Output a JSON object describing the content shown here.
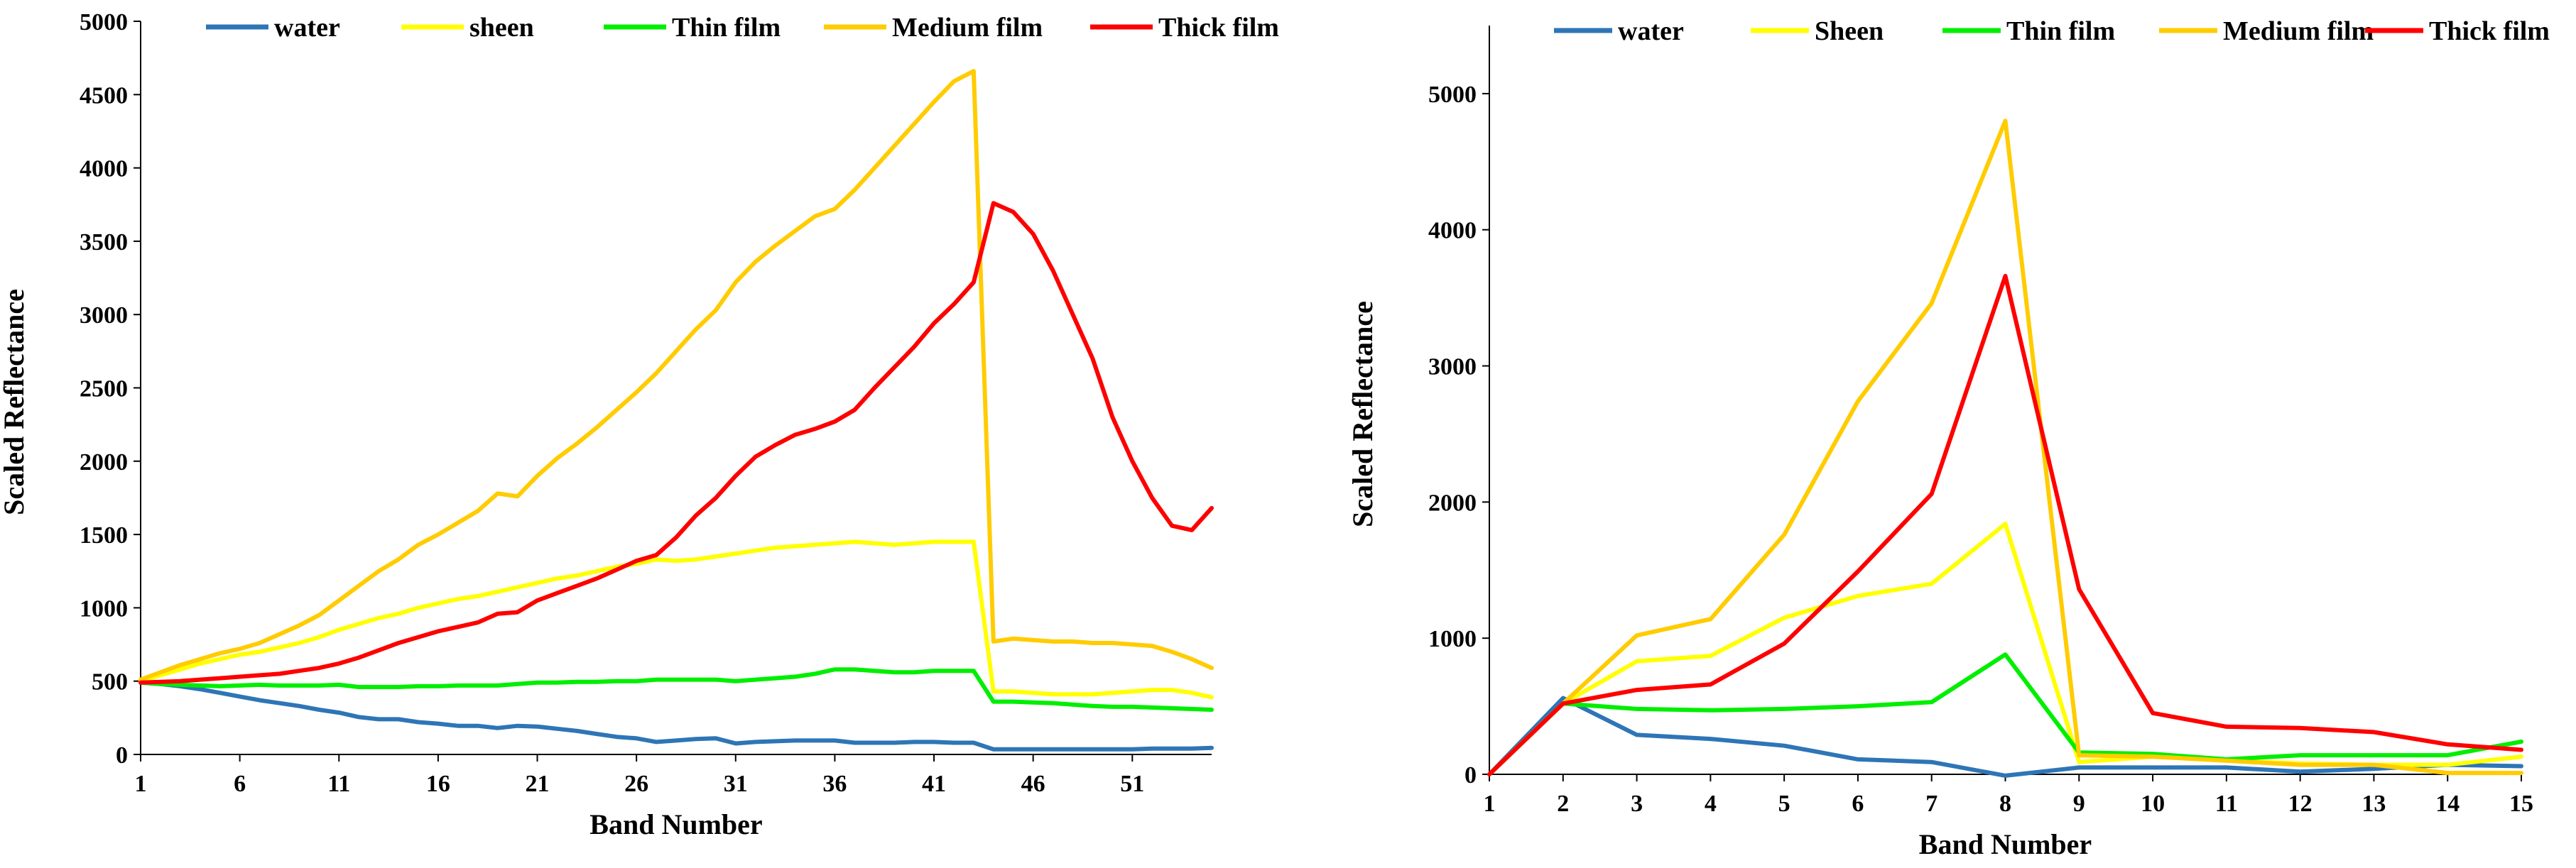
{
  "chart_data": [
    {
      "type": "line",
      "title": "",
      "xlabel": "Band Number",
      "ylabel": "Scaled Reflectance",
      "x_tick_labels": [
        "1",
        "6",
        "11",
        "16",
        "21",
        "26",
        "31",
        "36",
        "41",
        "46",
        "51"
      ],
      "x_range": [
        1,
        55
      ],
      "ylim": [
        0,
        5000
      ],
      "y_tick_labels": [
        "0",
        "500",
        "1000",
        "1500",
        "2000",
        "2500",
        "3000",
        "3500",
        "4000",
        "4500",
        "5000"
      ],
      "legend_position": "top",
      "x": [
        1,
        2,
        3,
        4,
        5,
        6,
        7,
        8,
        9,
        10,
        11,
        12,
        13,
        14,
        15,
        16,
        17,
        18,
        19,
        20,
        21,
        22,
        23,
        24,
        25,
        26,
        27,
        28,
        29,
        30,
        31,
        32,
        33,
        34,
        35,
        36,
        37,
        38,
        39,
        40,
        41,
        42,
        43,
        44,
        45,
        46,
        47,
        48,
        49,
        50,
        51,
        52,
        53,
        54,
        55
      ],
      "series": [
        {
          "name": "water",
          "color": "#2e75b6",
          "values": [
            490,
            480,
            465,
            445,
            420,
            395,
            370,
            350,
            330,
            305,
            285,
            255,
            240,
            240,
            220,
            210,
            195,
            195,
            180,
            195,
            190,
            175,
            160,
            140,
            120,
            110,
            85,
            95,
            105,
            110,
            75,
            85,
            90,
            95,
            95,
            95,
            80,
            80,
            80,
            85,
            85,
            80,
            80,
            35,
            35,
            35,
            35,
            35,
            35,
            35,
            35,
            40,
            40,
            40,
            45
          ]
        },
        {
          "name": "sheen",
          "color": "#ffff00",
          "values": [
            500,
            540,
            580,
            620,
            650,
            680,
            700,
            730,
            760,
            800,
            850,
            890,
            930,
            960,
            1000,
            1030,
            1060,
            1080,
            1110,
            1140,
            1170,
            1200,
            1220,
            1250,
            1280,
            1300,
            1330,
            1320,
            1330,
            1350,
            1370,
            1390,
            1410,
            1420,
            1430,
            1440,
            1450,
            1440,
            1430,
            1440,
            1450,
            1450,
            1450,
            430,
            430,
            420,
            410,
            410,
            410,
            420,
            430,
            440,
            440,
            420,
            390
          ]
        },
        {
          "name": "Thin film",
          "color": "#00ee00",
          "values": [
            490,
            480,
            475,
            470,
            465,
            470,
            475,
            470,
            470,
            470,
            475,
            460,
            460,
            460,
            465,
            465,
            470,
            470,
            470,
            480,
            490,
            490,
            495,
            495,
            500,
            500,
            510,
            510,
            510,
            510,
            500,
            510,
            520,
            530,
            550,
            580,
            580,
            570,
            560,
            560,
            570,
            570,
            570,
            360,
            360,
            355,
            350,
            340,
            330,
            325,
            325,
            320,
            315,
            310,
            305
          ]
        },
        {
          "name": "Medium film",
          "color": "#ffcc00",
          "values": [
            510,
            560,
            610,
            650,
            690,
            720,
            760,
            820,
            880,
            950,
            1050,
            1150,
            1250,
            1330,
            1430,
            1500,
            1580,
            1660,
            1780,
            1760,
            1900,
            2020,
            2120,
            2230,
            2350,
            2470,
            2600,
            2750,
            2900,
            3030,
            3220,
            3360,
            3470,
            3570,
            3670,
            3720,
            3850,
            4000,
            4150,
            4300,
            4450,
            4590,
            4660,
            770,
            790,
            780,
            770,
            770,
            760,
            760,
            750,
            740,
            700,
            650,
            590
          ]
        },
        {
          "name": "Thick film",
          "color": "#ff0000",
          "values": [
            490,
            495,
            500,
            510,
            520,
            530,
            540,
            550,
            570,
            590,
            620,
            660,
            710,
            760,
            800,
            840,
            870,
            900,
            960,
            970,
            1050,
            1100,
            1150,
            1200,
            1260,
            1320,
            1360,
            1480,
            1630,
            1750,
            1900,
            2030,
            2110,
            2180,
            2220,
            2270,
            2350,
            2500,
            2640,
            2780,
            2940,
            3070,
            3220,
            3760,
            3700,
            3550,
            3300,
            3000,
            2700,
            2300,
            2000,
            1750,
            1560,
            1530,
            1680
          ]
        }
      ]
    },
    {
      "type": "line",
      "title": "",
      "xlabel": "Band Number",
      "ylabel": "Scaled Reflectance",
      "x": [
        1,
        2,
        3,
        4,
        5,
        6,
        7,
        8,
        9,
        10,
        11,
        12,
        13,
        14,
        15
      ],
      "x_tick_labels": [
        "1",
        "2",
        "3",
        "4",
        "5",
        "6",
        "7",
        "8",
        "9",
        "10",
        "11",
        "12",
        "13",
        "14",
        "15"
      ],
      "ylim": [
        0,
        5500
      ],
      "y_tick_labels": [
        "0",
        "1000",
        "2000",
        "3000",
        "4000",
        "5000"
      ],
      "legend_position": "top",
      "series": [
        {
          "name": "water",
          "color": "#2e75b6",
          "values": [
            0,
            560,
            290,
            260,
            210,
            110,
            90,
            -10,
            50,
            50,
            50,
            20,
            40,
            70,
            60
          ]
        },
        {
          "name": "Sheen",
          "color": "#ffff00",
          "values": [
            0,
            520,
            830,
            870,
            1150,
            1310,
            1400,
            1840,
            90,
            130,
            100,
            80,
            70,
            70,
            130
          ]
        },
        {
          "name": "Thin film",
          "color": "#00ee00",
          "values": [
            0,
            520,
            480,
            470,
            480,
            500,
            530,
            880,
            160,
            150,
            110,
            140,
            140,
            140,
            240
          ]
        },
        {
          "name": "Medium film",
          "color": "#ffcc00",
          "values": [
            0,
            520,
            1020,
            1140,
            1760,
            2740,
            3460,
            4800,
            140,
            130,
            100,
            70,
            70,
            10,
            10
          ]
        },
        {
          "name": "Thick film",
          "color": "#ff0000",
          "values": [
            0,
            520,
            620,
            660,
            960,
            1490,
            2060,
            3660,
            1360,
            450,
            350,
            340,
            310,
            220,
            180
          ]
        }
      ]
    }
  ]
}
